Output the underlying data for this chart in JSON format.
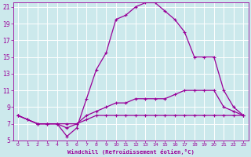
{
  "background_color": "#cce9ec",
  "line_color": "#990099",
  "grid_color": "#ffffff",
  "xlabel": "Windchill (Refroidissement éolien,°C)",
  "xlabel_color": "#990099",
  "tick_color": "#990099",
  "xlim": [
    -0.5,
    23.5
  ],
  "ylim": [
    5,
    21.5
  ],
  "xticks": [
    0,
    1,
    2,
    3,
    4,
    5,
    6,
    7,
    8,
    9,
    10,
    11,
    12,
    13,
    14,
    15,
    16,
    17,
    18,
    19,
    20,
    21,
    22,
    23
  ],
  "yticks": [
    5,
    7,
    9,
    11,
    13,
    15,
    17,
    19,
    21
  ],
  "line1_x": [
    0,
    1,
    2,
    3,
    4,
    5,
    6,
    7,
    8,
    9,
    10,
    11,
    12,
    13,
    14,
    15,
    16,
    17,
    18,
    19,
    20,
    21,
    22,
    23
  ],
  "line1_y": [
    8,
    7.5,
    7,
    7,
    7,
    7,
    7,
    7.5,
    8,
    8,
    8,
    8,
    8,
    8,
    8,
    8,
    8,
    8,
    8,
    8,
    8,
    8,
    8,
    8
  ],
  "line2_x": [
    0,
    1,
    2,
    3,
    4,
    5,
    6,
    7,
    8,
    9,
    10,
    11,
    12,
    13,
    14,
    15,
    16,
    17,
    18,
    19,
    20,
    21,
    22,
    23
  ],
  "line2_y": [
    8,
    7.5,
    7,
    7,
    7,
    6.5,
    7,
    8,
    8.5,
    9,
    9.5,
    9.5,
    10,
    10,
    10,
    10,
    10.5,
    11,
    11,
    11,
    11,
    9,
    8.5,
    8
  ],
  "line3_x": [
    0,
    2,
    3,
    4,
    5,
    6,
    7,
    8,
    9,
    10,
    11,
    12,
    13,
    14,
    15,
    16,
    17,
    18,
    19,
    20,
    21,
    22,
    23
  ],
  "line3_y": [
    8,
    7,
    7,
    7,
    5.5,
    6.5,
    10,
    13.5,
    15.5,
    19.5,
    20,
    21,
    21.5,
    21.5,
    20.5,
    19.5,
    18,
    15,
    15,
    15,
    11,
    9,
    8
  ]
}
